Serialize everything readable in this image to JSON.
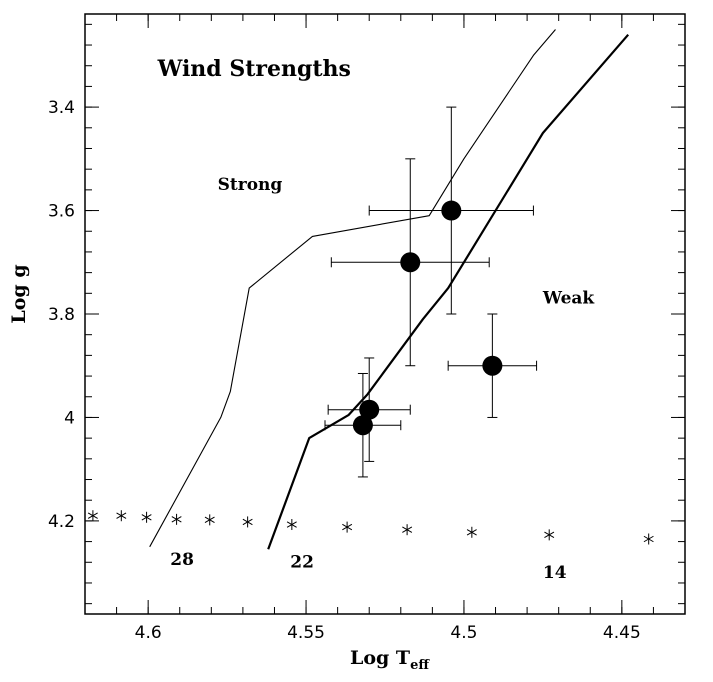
{
  "chart_data": {
    "type": "scatter",
    "title": "Wind Strengths",
    "xlabel": "Log T",
    "xlabel_sub": "eff",
    "ylabel": "Log g",
    "xlim": [
      4.62,
      4.43
    ],
    "ylim": [
      4.38,
      3.22
    ],
    "x_ticks": [
      4.6,
      4.55,
      4.5,
      4.45
    ],
    "x_tick_labels": [
      "4.6",
      "4.55",
      "4.5",
      "4.45"
    ],
    "y_ticks": [
      3.4,
      3.6,
      3.8,
      4.0,
      4.2
    ],
    "y_tick_labels": [
      "3.4",
      "3.6",
      "3.8",
      "4",
      "4.2"
    ],
    "grid": false,
    "annotations": [
      {
        "text": "Wind Strengths",
        "x": 4.597,
        "y": 3.34,
        "size": 22
      },
      {
        "text": "Strong",
        "x": 4.578,
        "y": 3.56,
        "size": 17
      },
      {
        "text": "Weak",
        "x": 4.475,
        "y": 3.78,
        "size": 17
      },
      {
        "text": "28",
        "x": 4.593,
        "y": 4.285,
        "size": 17
      },
      {
        "text": "22",
        "x": 4.555,
        "y": 4.29,
        "size": 17
      },
      {
        "text": "14",
        "x": 4.475,
        "y": 4.31,
        "size": 17
      }
    ],
    "series": [
      {
        "style": "errorbar",
        "points": [
          {
            "x": 4.504,
            "y": 3.6,
            "xerr": 0.026,
            "yerr": 0.2
          },
          {
            "x": 4.517,
            "y": 3.7,
            "xerr": 0.025,
            "yerr": 0.2
          },
          {
            "x": 4.491,
            "y": 3.9,
            "xerr": 0.014,
            "yerr": 0.1
          },
          {
            "x": 4.53,
            "y": 3.985,
            "xerr": 0.013,
            "yerr": 0.1
          },
          {
            "x": 4.532,
            "y": 4.015,
            "xerr": 0.012,
            "yerr": 0.1
          }
        ]
      },
      {
        "style": "asterisk",
        "points": [
          {
            "x": 4.6175,
            "y": 4.19
          },
          {
            "x": 4.6085,
            "y": 4.19
          },
          {
            "x": 4.6005,
            "y": 4.193
          },
          {
            "x": 4.591,
            "y": 4.197
          },
          {
            "x": 4.5805,
            "y": 4.198
          },
          {
            "x": 4.5685,
            "y": 4.202
          },
          {
            "x": 4.5545,
            "y": 4.207
          },
          {
            "x": 4.537,
            "y": 4.212
          },
          {
            "x": 4.518,
            "y": 4.217
          },
          {
            "x": 4.4975,
            "y": 4.222
          },
          {
            "x": 4.473,
            "y": 4.227
          },
          {
            "x": 4.4415,
            "y": 4.235
          }
        ]
      },
      {
        "style": "thin-line",
        "points": [
          {
            "x": 4.5995,
            "y": 4.25
          },
          {
            "x": 4.577,
            "y": 4.0
          },
          {
            "x": 4.574,
            "y": 3.95
          },
          {
            "x": 4.568,
            "y": 3.75
          },
          {
            "x": 4.548,
            "y": 3.65
          },
          {
            "x": 4.511,
            "y": 3.61
          },
          {
            "x": 4.5,
            "y": 3.5
          },
          {
            "x": 4.478,
            "y": 3.3
          },
          {
            "x": 4.471,
            "y": 3.25
          }
        ]
      },
      {
        "style": "thick-line",
        "points": [
          {
            "x": 4.562,
            "y": 4.255
          },
          {
            "x": 4.549,
            "y": 4.04
          },
          {
            "x": 4.5365,
            "y": 3.995
          },
          {
            "x": 4.5305,
            "y": 3.955
          },
          {
            "x": 4.513,
            "y": 3.81
          },
          {
            "x": 4.505,
            "y": 3.75
          },
          {
            "x": 4.479,
            "y": 3.49
          },
          {
            "x": 4.475,
            "y": 3.45
          },
          {
            "x": 4.448,
            "y": 3.26
          }
        ]
      }
    ]
  }
}
